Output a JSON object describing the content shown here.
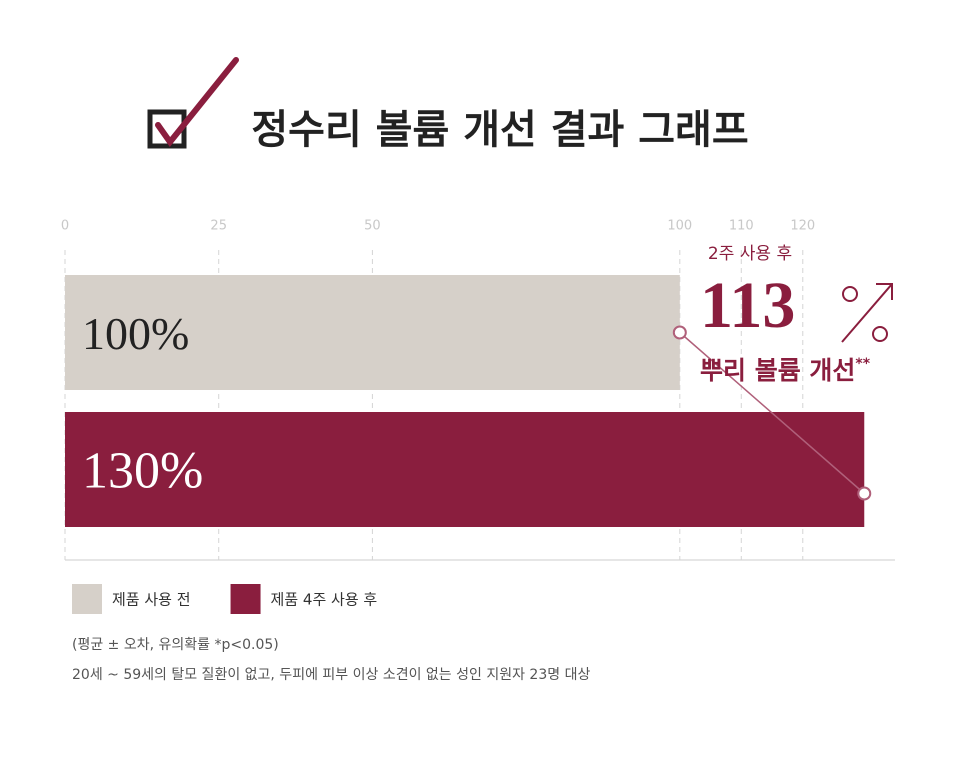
{
  "chart_data": {
    "type": "bar",
    "title": "정수리 볼륨 개선 결과 그래프",
    "categories": [
      "제품 사용 전",
      "제품 4주 사용 후"
    ],
    "values": [
      100,
      130
    ],
    "value_labels": [
      "100%",
      "130%"
    ],
    "colors": [
      "#d6d0c9",
      "#8a1e3e"
    ],
    "label_colors": [
      "#222222",
      "#ffffff"
    ],
    "xlim": [
      0,
      135
    ],
    "xticks": [
      0,
      25,
      50,
      100,
      110,
      120
    ],
    "grid": true,
    "annotation": {
      "text": "2주 사용 후",
      "value": 113,
      "caption": "뿌리 볼륨 개선",
      "note": "**"
    },
    "notes": [
      "(평균 ± 오차, 유의확률 *p<0.05)",
      "20세 ~ 59세의 탈모 질환이 없고, 두피에 피부 이상 소견이 없는 성인 지원자 23명 대상"
    ]
  }
}
